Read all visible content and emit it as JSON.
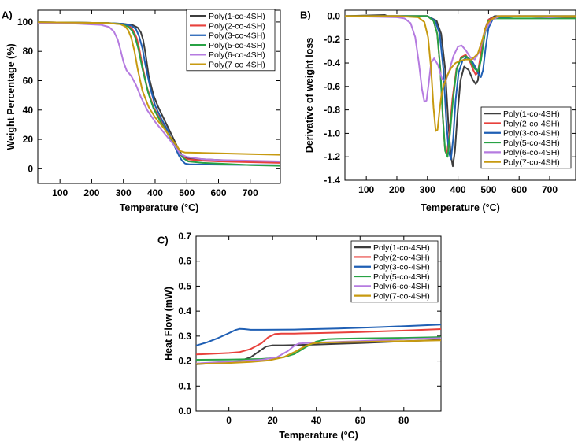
{
  "chart_data": [
    {
      "type": "line",
      "panel_label": "A)",
      "xlabel": "Temperature (°C)",
      "ylabel": "Weight Percentage (%)",
      "xlim": [
        30,
        795
      ],
      "ylim": [
        -10,
        108
      ],
      "xticks": [
        100,
        200,
        300,
        400,
        500,
        600,
        700
      ],
      "yticks": [
        0,
        20,
        40,
        60,
        80,
        100
      ],
      "legend_position": "top-right",
      "series": [
        {
          "name": "Poly(1-co-4SH)",
          "color": "#3d3d3d",
          "x": [
            30,
            150,
            250,
            300,
            330,
            345,
            355,
            362,
            370,
            380,
            395,
            410,
            430,
            450,
            470,
            485,
            500,
            550,
            600,
            650,
            700,
            795
          ],
          "y": [
            99.8,
            99.6,
            99.3,
            98.8,
            97.8,
            96.2,
            93,
            88,
            78,
            63,
            50,
            42,
            33,
            24,
            15,
            9,
            7,
            6.5,
            6,
            5.5,
            5,
            4.5
          ]
        },
        {
          "name": "Poly(2-co-4SH)",
          "color": "#e8413c",
          "x": [
            30,
            150,
            250,
            300,
            320,
            332,
            342,
            350,
            360,
            375,
            395,
            415,
            440,
            465,
            485,
            500,
            550,
            600,
            700,
            795
          ],
          "y": [
            99.8,
            99.6,
            99.3,
            98.5,
            97,
            94,
            89,
            82,
            70,
            55,
            42,
            34,
            25,
            15,
            8,
            6.5,
            5.5,
            5,
            4.5,
            4
          ]
        },
        {
          "name": "Poly(3-co-4SH)",
          "color": "#1f5fb4",
          "x": [
            30,
            150,
            250,
            300,
            325,
            340,
            350,
            360,
            370,
            385,
            400,
            420,
            440,
            460,
            475,
            485,
            495,
            510,
            600,
            700,
            795
          ],
          "y": [
            99.8,
            99.6,
            99.3,
            98.7,
            97.5,
            95,
            90,
            82,
            70,
            55,
            43,
            34,
            26,
            16,
            9,
            5.5,
            3.5,
            3,
            2.8,
            2.6,
            2.4
          ]
        },
        {
          "name": "Poly(5-co-4SH)",
          "color": "#27a244",
          "x": [
            30,
            150,
            250,
            290,
            315,
            328,
            338,
            348,
            360,
            378,
            395,
            420,
            445,
            470,
            490,
            505,
            550,
            600,
            700,
            795
          ],
          "y": [
            99.8,
            99.6,
            99.3,
            98.6,
            96.8,
            94,
            89,
            81,
            68,
            52,
            41,
            31,
            22,
            13,
            7,
            5,
            4,
            3.5,
            2.5,
            2
          ]
        },
        {
          "name": "Poly(6-co-4SH)",
          "color": "#b57be0",
          "x": [
            30,
            150,
            230,
            255,
            270,
            282,
            292,
            300,
            310,
            325,
            340,
            355,
            375,
            400,
            430,
            460,
            480,
            500,
            550,
            600,
            700,
            795
          ],
          "y": [
            99.2,
            98.9,
            98,
            96.5,
            93.5,
            88,
            80,
            73,
            67,
            63,
            57,
            49,
            40,
            32,
            24,
            16,
            10,
            8,
            6.5,
            6,
            5.5,
            5
          ]
        },
        {
          "name": "Poly(7-co-4SH)",
          "color": "#c79a10",
          "x": [
            30,
            150,
            250,
            290,
            305,
            315,
            325,
            335,
            345,
            360,
            380,
            400,
            430,
            460,
            480,
            495,
            550,
            600,
            700,
            795
          ],
          "y": [
            99.8,
            99.6,
            99.3,
            98.5,
            97,
            94.5,
            89,
            80,
            68,
            53,
            42,
            35,
            27,
            18,
            12,
            11,
            10.8,
            10.5,
            10,
            9.5
          ]
        }
      ]
    },
    {
      "type": "line",
      "panel_label": "B)",
      "xlabel": "Temperature (°C)",
      "ylabel": "Derivative of weight loss",
      "xlim": [
        30,
        785
      ],
      "ylim": [
        -1.4,
        0.05
      ],
      "xticks": [
        100,
        200,
        300,
        400,
        500,
        600,
        700
      ],
      "yticks": [
        0.0,
        -0.2,
        -0.4,
        -0.6,
        -0.8,
        -1.0,
        -1.2,
        -1.4
      ],
      "legend_position": "bottom-right",
      "series": [
        {
          "name": "Poly(1-co-4SH)",
          "color": "#3d3d3d",
          "x": [
            30,
            160,
            170,
            300,
            330,
            345,
            358,
            368,
            376,
            383,
            390,
            398,
            408,
            420,
            435,
            448,
            458,
            465,
            475,
            487,
            500,
            520,
            600,
            700,
            785
          ],
          "y": [
            0,
            0.01,
            0,
            0,
            -0.04,
            -0.15,
            -0.45,
            -0.9,
            -1.18,
            -1.28,
            -1.15,
            -0.85,
            -0.55,
            -0.43,
            -0.46,
            -0.54,
            -0.58,
            -0.55,
            -0.35,
            -0.12,
            -0.03,
            0,
            0,
            0,
            0
          ]
        },
        {
          "name": "Poly(2-co-4SH)",
          "color": "#e8413c",
          "x": [
            30,
            200,
            300,
            320,
            332,
            342,
            350,
            357,
            364,
            372,
            382,
            395,
            410,
            425,
            438,
            450,
            458,
            465,
            475,
            488,
            500,
            520,
            600,
            700,
            785
          ],
          "y": [
            0,
            0,
            0,
            -0.04,
            -0.15,
            -0.45,
            -0.85,
            -1.12,
            -1.17,
            -1.0,
            -0.7,
            -0.45,
            -0.35,
            -0.33,
            -0.38,
            -0.46,
            -0.5,
            -0.48,
            -0.32,
            -0.12,
            -0.03,
            -0.01,
            0,
            -0.01,
            -0.01
          ]
        },
        {
          "name": "Poly(3-co-4SH)",
          "color": "#1f5fb4",
          "x": [
            30,
            200,
            300,
            325,
            340,
            352,
            362,
            370,
            377,
            384,
            392,
            402,
            415,
            430,
            445,
            458,
            468,
            475,
            482,
            490,
            500,
            515,
            600,
            700,
            785
          ],
          "y": [
            0,
            0,
            0,
            -0.04,
            -0.15,
            -0.45,
            -0.9,
            -1.16,
            -1.22,
            -1.05,
            -0.72,
            -0.48,
            -0.38,
            -0.35,
            -0.38,
            -0.44,
            -0.5,
            -0.52,
            -0.46,
            -0.28,
            -0.1,
            -0.02,
            0,
            0,
            0
          ]
        },
        {
          "name": "Poly(5-co-4SH)",
          "color": "#27a244",
          "x": [
            30,
            200,
            300,
            320,
            332,
            342,
            350,
            358,
            366,
            374,
            384,
            396,
            410,
            425,
            440,
            455,
            465,
            475,
            488,
            500,
            520,
            600,
            700,
            785
          ],
          "y": [
            0,
            0,
            0,
            -0.04,
            -0.15,
            -0.45,
            -0.85,
            -1.15,
            -1.2,
            -1.0,
            -0.7,
            -0.45,
            -0.36,
            -0.34,
            -0.38,
            -0.45,
            -0.47,
            -0.38,
            -0.15,
            -0.04,
            -0.02,
            -0.02,
            -0.02,
            -0.02
          ]
        },
        {
          "name": "Poly(6-co-4SH)",
          "color": "#b57be0",
          "x": [
            30,
            200,
            225,
            245,
            260,
            272,
            282,
            290,
            297,
            304,
            312,
            322,
            335,
            348,
            360,
            372,
            385,
            400,
            412,
            425,
            440,
            455,
            470,
            490,
            510,
            540,
            600,
            700,
            785
          ],
          "y": [
            0,
            -0.01,
            -0.02,
            -0.06,
            -0.18,
            -0.4,
            -0.62,
            -0.73,
            -0.72,
            -0.58,
            -0.4,
            -0.36,
            -0.42,
            -0.54,
            -0.55,
            -0.46,
            -0.34,
            -0.26,
            -0.25,
            -0.29,
            -0.35,
            -0.37,
            -0.3,
            -0.12,
            -0.03,
            0,
            0,
            -0.01,
            0
          ]
        },
        {
          "name": "Poly(7-co-4SH)",
          "color": "#c79a10",
          "x": [
            30,
            200,
            270,
            290,
            302,
            312,
            320,
            327,
            333,
            339,
            346,
            355,
            366,
            378,
            392,
            408,
            425,
            445,
            465,
            480,
            490,
            500,
            515,
            530,
            600,
            700,
            785
          ],
          "y": [
            0,
            0,
            -0.01,
            -0.05,
            -0.18,
            -0.45,
            -0.78,
            -0.98,
            -0.97,
            -0.82,
            -0.67,
            -0.58,
            -0.5,
            -0.44,
            -0.4,
            -0.38,
            -0.37,
            -0.37,
            -0.32,
            -0.2,
            -0.1,
            -0.05,
            -0.02,
            0,
            0,
            0,
            0
          ]
        }
      ]
    },
    {
      "type": "line",
      "panel_label": "C)",
      "xlabel": "Temperature (°C)",
      "ylabel": "Heat Flow (mW)",
      "xlim": [
        -15,
        97
      ],
      "ylim": [
        0.0,
        0.7
      ],
      "xticks": [
        0,
        20,
        40,
        60,
        80
      ],
      "yticks": [
        0.0,
        0.1,
        0.2,
        0.3,
        0.4,
        0.5,
        0.6,
        0.7
      ],
      "legend_position": "top-right",
      "series": [
        {
          "name": "Poly(1-co-4SH)",
          "color": "#3d3d3d",
          "x": [
            -15,
            0,
            5,
            10,
            14,
            17,
            20,
            25,
            40,
            60,
            80,
            97
          ],
          "y": [
            0.187,
            0.195,
            0.2,
            0.215,
            0.24,
            0.258,
            0.263,
            0.263,
            0.266,
            0.272,
            0.279,
            0.285
          ]
        },
        {
          "name": "Poly(2-co-4SH)",
          "color": "#e8413c",
          "x": [
            -15,
            0,
            5,
            10,
            15,
            18,
            21,
            24,
            30,
            40,
            60,
            80,
            97
          ],
          "y": [
            0.226,
            0.232,
            0.236,
            0.248,
            0.272,
            0.295,
            0.308,
            0.31,
            0.31,
            0.312,
            0.316,
            0.322,
            0.328
          ]
        },
        {
          "name": "Poly(3-co-4SH)",
          "color": "#1f5fb4",
          "x": [
            -15,
            -10,
            -5,
            0,
            3,
            5,
            7,
            10,
            15,
            30,
            50,
            70,
            97
          ],
          "y": [
            0.262,
            0.275,
            0.292,
            0.312,
            0.324,
            0.329,
            0.328,
            0.325,
            0.325,
            0.326,
            0.33,
            0.336,
            0.346
          ]
        },
        {
          "name": "Poly(5-co-4SH)",
          "color": "#27a244",
          "x": [
            -15,
            0,
            15,
            25,
            30,
            35,
            40,
            45,
            50,
            60,
            80,
            97
          ],
          "y": [
            0.205,
            0.206,
            0.208,
            0.215,
            0.228,
            0.255,
            0.278,
            0.288,
            0.289,
            0.291,
            0.293,
            0.296
          ]
        },
        {
          "name": "Poly(6-co-4SH)",
          "color": "#b57be0",
          "x": [
            -15,
            0,
            15,
            22,
            27,
            30,
            32,
            35,
            40,
            60,
            80,
            97
          ],
          "y": [
            0.19,
            0.198,
            0.205,
            0.215,
            0.24,
            0.262,
            0.27,
            0.272,
            0.274,
            0.28,
            0.288,
            0.292
          ]
        },
        {
          "name": "Poly(7-co-4SH)",
          "color": "#c79a10",
          "x": [
            -15,
            0,
            10,
            18,
            25,
            30,
            35,
            38,
            42,
            50,
            60,
            80,
            97
          ],
          "y": [
            0.188,
            0.192,
            0.196,
            0.202,
            0.215,
            0.236,
            0.26,
            0.27,
            0.274,
            0.275,
            0.277,
            0.28,
            0.283
          ]
        }
      ]
    }
  ]
}
